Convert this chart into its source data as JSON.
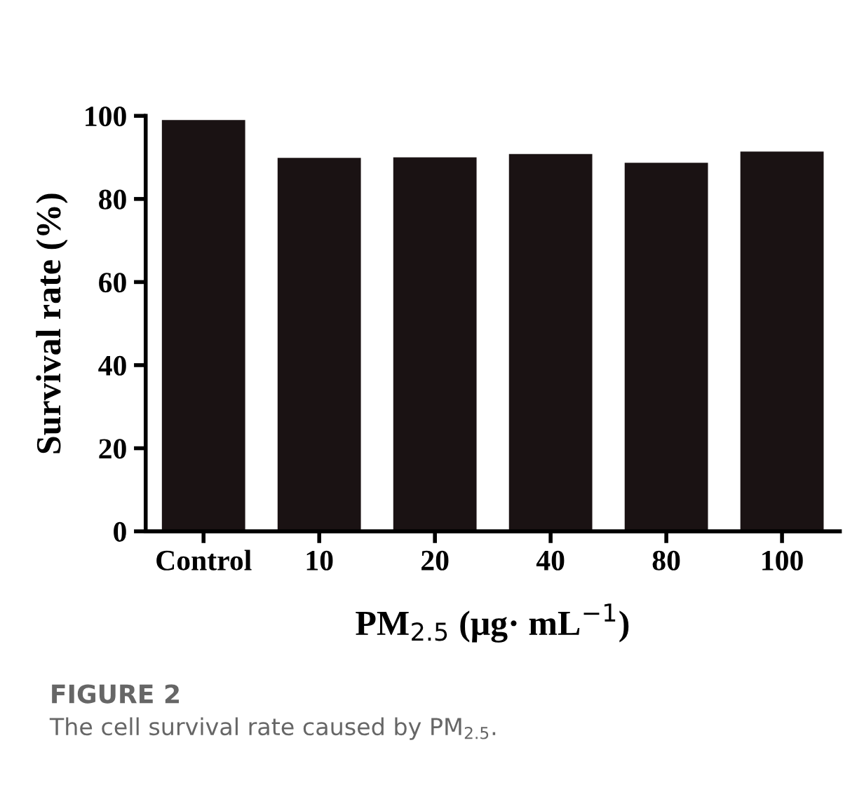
{
  "chart_data": {
    "type": "bar",
    "categories": [
      "Control",
      "10",
      "20",
      "40",
      "80",
      "100"
    ],
    "values": [
      99,
      89.9,
      90,
      90.8,
      88.7,
      91.4
    ],
    "color": "#1a1213",
    "xlabel": "PM$_{2.5}$ (μg· mL$^{−1}$)",
    "ylabel": "Survival rate (%)",
    "ylim": [
      0,
      100
    ],
    "yticks": [
      0,
      20,
      40,
      60,
      80,
      100
    ],
    "grid": false,
    "annotations": [
      "FIGURE 2",
      "The cell survival rate caused by PM$_{2.5}$."
    ]
  }
}
